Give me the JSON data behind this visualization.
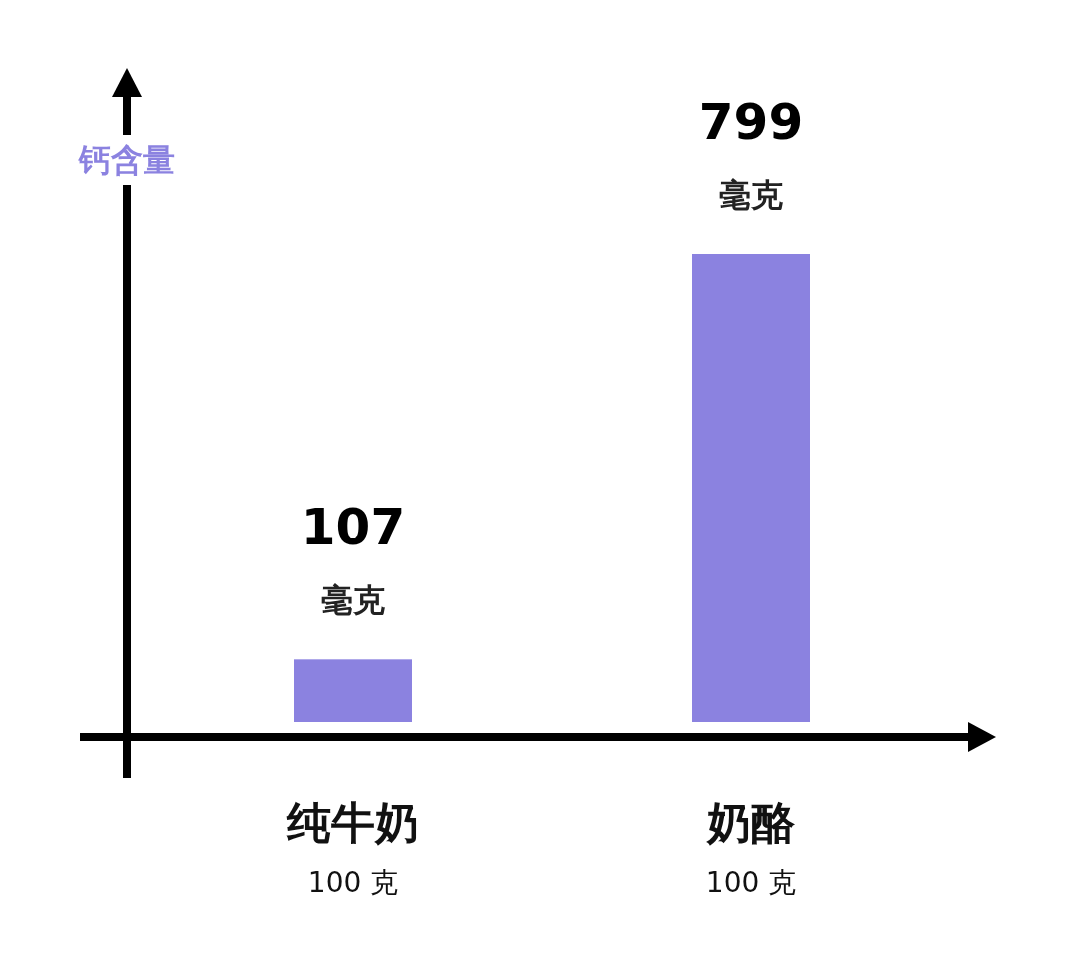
{
  "chart_data": {
    "type": "bar",
    "ylabel": "钙含量",
    "categories": [
      "纯牛奶\n100 克",
      "奶酪\n100 克"
    ],
    "values": [
      107,
      799
    ],
    "color": "#8b82e0",
    "value_labels": [
      "107\n毫克",
      "799\n毫克"
    ]
  }
}
